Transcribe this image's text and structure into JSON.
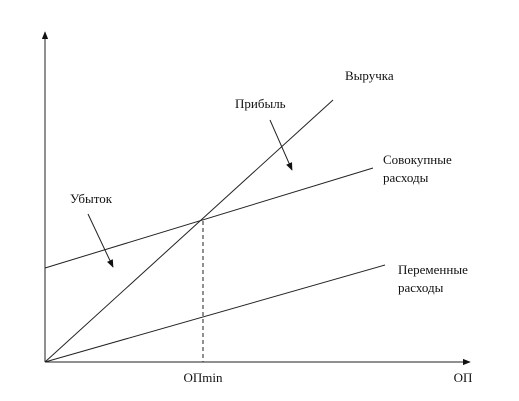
{
  "labels": {
    "revenue": "Выручка",
    "profit": "Прибыль",
    "total_costs": [
      "Совокупные",
      "расходы"
    ],
    "loss": "Убыток",
    "variable_costs": [
      "Переменные",
      "расходы"
    ],
    "break_even": "ОПmin",
    "x_axis": "ОП"
  }
}
